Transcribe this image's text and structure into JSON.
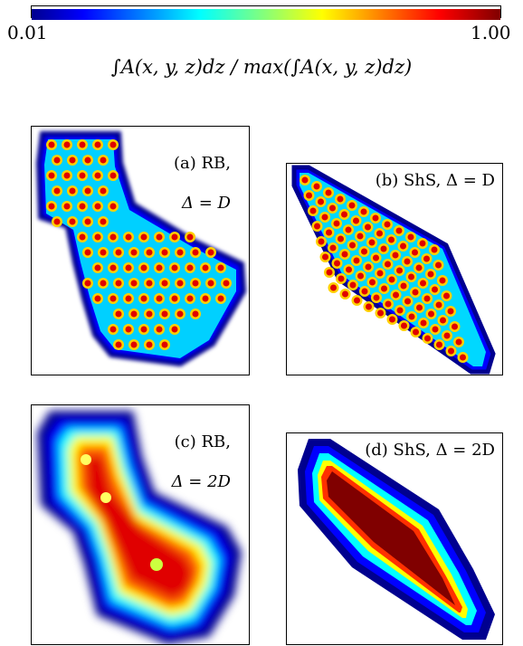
{
  "colorbar": {
    "min_label": "0.01",
    "max_label": "1.00",
    "label": "∫A(x, y, z)dz / max(∫A(x, y, z)dz)",
    "colormap": [
      "#00008f",
      "#0000ff",
      "#0080ff",
      "#00ffff",
      "#80ff80",
      "#ffff00",
      "#ff8000",
      "#ff0000",
      "#800000"
    ]
  },
  "panels": [
    {
      "label_line1": "(a) RB,",
      "label_line2": "Δ = D"
    },
    {
      "label_line1": "(b) ShS, Δ = D",
      "label_line2": ""
    },
    {
      "label_line1": "(c) RB,",
      "label_line2": "Δ = 2D"
    },
    {
      "label_line1": "(d) ShS, Δ = 2D",
      "label_line2": ""
    }
  ]
}
